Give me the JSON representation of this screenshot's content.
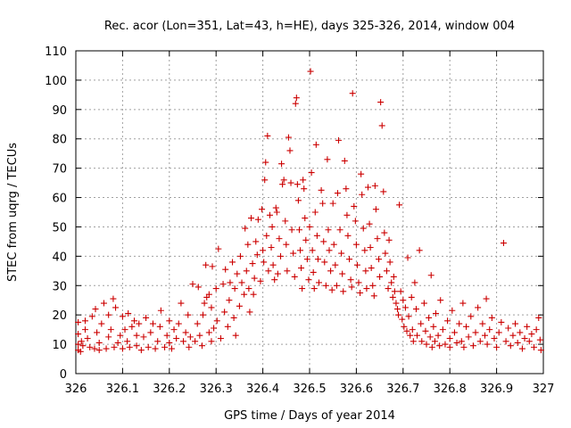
{
  "chart_data": {
    "type": "scatter",
    "title": "Rec. acor (Lon=351, Lat=43, h=HE), days 325-326, 2014, window 004",
    "xlabel": "GPS time / Days of year 2014",
    "ylabel": "STEC from uqrg / TECUs",
    "xlim": [
      326,
      327
    ],
    "ylim": [
      0,
      110
    ],
    "x_ticks": [
      "326",
      "326.1",
      "326.2",
      "326.3",
      "326.4",
      "326.5",
      "326.6",
      "326.7",
      "326.8",
      "326.9",
      "327"
    ],
    "y_ticks": [
      "0",
      "10",
      "20",
      "30",
      "40",
      "50",
      "60",
      "70",
      "80",
      "90",
      "100",
      "110"
    ],
    "grid": true,
    "marker": "plus",
    "color": "#cc0000",
    "points": [
      [
        326.005,
        17.5
      ],
      [
        326.005,
        13.5
      ],
      [
        326.005,
        10
      ],
      [
        326.005,
        8
      ],
      [
        326.01,
        7.5
      ],
      [
        326.012,
        11
      ],
      [
        326.015,
        9.5
      ],
      [
        326.02,
        15
      ],
      [
        326.02,
        18
      ],
      [
        326.025,
        12
      ],
      [
        326.03,
        9
      ],
      [
        326.035,
        19.5
      ],
      [
        326.04,
        8.5
      ],
      [
        326.042,
        22
      ],
      [
        326.045,
        14
      ],
      [
        326.05,
        10.5
      ],
      [
        326.05,
        8
      ],
      [
        326.055,
        17
      ],
      [
        326.06,
        24
      ],
      [
        326.065,
        8.5
      ],
      [
        326.07,
        12.5
      ],
      [
        326.07,
        20
      ],
      [
        326.075,
        15
      ],
      [
        326.08,
        25.5
      ],
      [
        326.082,
        9
      ],
      [
        326.085,
        22.5
      ],
      [
        326.09,
        10.5
      ],
      [
        326.095,
        13
      ],
      [
        326.1,
        19.5
      ],
      [
        326.1,
        8.5
      ],
      [
        326.105,
        15
      ],
      [
        326.11,
        11
      ],
      [
        326.112,
        20.5
      ],
      [
        326.115,
        9
      ],
      [
        326.12,
        16
      ],
      [
        326.125,
        18
      ],
      [
        326.13,
        9.5
      ],
      [
        326.13,
        13
      ],
      [
        326.135,
        17
      ],
      [
        326.14,
        8
      ],
      [
        326.145,
        12.5
      ],
      [
        326.15,
        19
      ],
      [
        326.155,
        9
      ],
      [
        326.16,
        14
      ],
      [
        326.165,
        17
      ],
      [
        326.17,
        8.5
      ],
      [
        326.175,
        11
      ],
      [
        326.18,
        16
      ],
      [
        326.182,
        21.5
      ],
      [
        326.19,
        9
      ],
      [
        326.195,
        13
      ],
      [
        326.2,
        18
      ],
      [
        326.2,
        10.5
      ],
      [
        326.205,
        8.5
      ],
      [
        326.21,
        15
      ],
      [
        326.215,
        12
      ],
      [
        326.22,
        17
      ],
      [
        326.225,
        24
      ],
      [
        326.23,
        11
      ],
      [
        326.235,
        14
      ],
      [
        326.24,
        20
      ],
      [
        326.242,
        9
      ],
      [
        326.245,
        12.5
      ],
      [
        326.25,
        30.5
      ],
      [
        326.255,
        11
      ],
      [
        326.26,
        17
      ],
      [
        326.262,
        29.5
      ],
      [
        326.265,
        13
      ],
      [
        326.27,
        9.5
      ],
      [
        326.272,
        20
      ],
      [
        326.275,
        24
      ],
      [
        326.278,
        37
      ],
      [
        326.28,
        26
      ],
      [
        326.285,
        14
      ],
      [
        326.285,
        27
      ],
      [
        326.29,
        11
      ],
      [
        326.29,
        22.5
      ],
      [
        326.292,
        36.5
      ],
      [
        326.295,
        15.5
      ],
      [
        326.3,
        29
      ],
      [
        326.302,
        18
      ],
      [
        326.305,
        42.5
      ],
      [
        326.31,
        12
      ],
      [
        326.315,
        30.5
      ],
      [
        326.318,
        21
      ],
      [
        326.32,
        35.5
      ],
      [
        326.325,
        16
      ],
      [
        326.328,
        25
      ],
      [
        326.33,
        31
      ],
      [
        326.335,
        38
      ],
      [
        326.338,
        19
      ],
      [
        326.34,
        29
      ],
      [
        326.342,
        13
      ],
      [
        326.345,
        34
      ],
      [
        326.35,
        23
      ],
      [
        326.352,
        40
      ],
      [
        326.355,
        31
      ],
      [
        326.36,
        27
      ],
      [
        326.362,
        49.5
      ],
      [
        326.365,
        35
      ],
      [
        326.368,
        44
      ],
      [
        326.37,
        29
      ],
      [
        326.372,
        21
      ],
      [
        326.375,
        53
      ],
      [
        326.378,
        37.5
      ],
      [
        326.38,
        27
      ],
      [
        326.382,
        32.5
      ],
      [
        326.385,
        45
      ],
      [
        326.388,
        40.5
      ],
      [
        326.39,
        52.5
      ],
      [
        326.395,
        31.5
      ],
      [
        326.398,
        56
      ],
      [
        326.4,
        42
      ],
      [
        326.402,
        38
      ],
      [
        326.404,
        66
      ],
      [
        326.406,
        72
      ],
      [
        326.408,
        47
      ],
      [
        326.41,
        81
      ],
      [
        326.412,
        35
      ],
      [
        326.415,
        54
      ],
      [
        326.418,
        43
      ],
      [
        326.42,
        50
      ],
      [
        326.422,
        37
      ],
      [
        326.425,
        32
      ],
      [
        326.428,
        56.5
      ],
      [
        326.43,
        55
      ],
      [
        326.432,
        34
      ],
      [
        326.435,
        46
      ],
      [
        326.438,
        40
      ],
      [
        326.44,
        71.5
      ],
      [
        326.442,
        64.5
      ],
      [
        326.445,
        66
      ],
      [
        326.448,
        52
      ],
      [
        326.45,
        44
      ],
      [
        326.452,
        35
      ],
      [
        326.455,
        80.5
      ],
      [
        326.458,
        76
      ],
      [
        326.46,
        65
      ],
      [
        326.462,
        49
      ],
      [
        326.465,
        41
      ],
      [
        326.468,
        33
      ],
      [
        326.47,
        92
      ],
      [
        326.472,
        94
      ],
      [
        326.474,
        64.5
      ],
      [
        326.476,
        59
      ],
      [
        326.478,
        49
      ],
      [
        326.48,
        42
      ],
      [
        326.482,
        36
      ],
      [
        326.484,
        29
      ],
      [
        326.486,
        66
      ],
      [
        326.488,
        63
      ],
      [
        326.49,
        53
      ],
      [
        326.492,
        45.5
      ],
      [
        326.495,
        39
      ],
      [
        326.498,
        32
      ],
      [
        326.5,
        50
      ],
      [
        326.502,
        103
      ],
      [
        326.504,
        68.5
      ],
      [
        326.506,
        42
      ],
      [
        326.508,
        34.5
      ],
      [
        326.51,
        29
      ],
      [
        326.512,
        55
      ],
      [
        326.514,
        78
      ],
      [
        326.516,
        47
      ],
      [
        326.518,
        39
      ],
      [
        326.52,
        31
      ],
      [
        326.525,
        62.5
      ],
      [
        326.528,
        58
      ],
      [
        326.53,
        45
      ],
      [
        326.532,
        38
      ],
      [
        326.535,
        30
      ],
      [
        326.538,
        73
      ],
      [
        326.54,
        49
      ],
      [
        326.542,
        42
      ],
      [
        326.545,
        35
      ],
      [
        326.548,
        28.5
      ],
      [
        326.55,
        58
      ],
      [
        326.552,
        44
      ],
      [
        326.555,
        37
      ],
      [
        326.558,
        30
      ],
      [
        326.56,
        61.5
      ],
      [
        326.562,
        79.5
      ],
      [
        326.565,
        49
      ],
      [
        326.568,
        41
      ],
      [
        326.57,
        34
      ],
      [
        326.572,
        28
      ],
      [
        326.575,
        72.5
      ],
      [
        326.578,
        63
      ],
      [
        326.58,
        54
      ],
      [
        326.582,
        47
      ],
      [
        326.585,
        39
      ],
      [
        326.588,
        32
      ],
      [
        326.59,
        29.5
      ],
      [
        326.592,
        95.5
      ],
      [
        326.595,
        57
      ],
      [
        326.598,
        52
      ],
      [
        326.6,
        44
      ],
      [
        326.602,
        37
      ],
      [
        326.605,
        31
      ],
      [
        326.608,
        27.5
      ],
      [
        326.61,
        68
      ],
      [
        326.612,
        61
      ],
      [
        326.615,
        49.5
      ],
      [
        326.618,
        42
      ],
      [
        326.62,
        35
      ],
      [
        326.622,
        29
      ],
      [
        326.625,
        63.5
      ],
      [
        326.628,
        51
      ],
      [
        326.63,
        43
      ],
      [
        326.632,
        36
      ],
      [
        326.635,
        30
      ],
      [
        326.638,
        26.5
      ],
      [
        326.64,
        64
      ],
      [
        326.642,
        56
      ],
      [
        326.645,
        46
      ],
      [
        326.648,
        39
      ],
      [
        326.65,
        33
      ],
      [
        326.652,
        92.5
      ],
      [
        326.655,
        84.5
      ],
      [
        326.658,
        62
      ],
      [
        326.66,
        48
      ],
      [
        326.662,
        41
      ],
      [
        326.665,
        35
      ],
      [
        326.668,
        29
      ],
      [
        326.67,
        45.5
      ],
      [
        326.672,
        38
      ],
      [
        326.675,
        31
      ],
      [
        326.678,
        26
      ],
      [
        326.68,
        33
      ],
      [
        326.682,
        28
      ],
      [
        326.685,
        24
      ],
      [
        326.688,
        22
      ],
      [
        326.69,
        20
      ],
      [
        326.692,
        57.5
      ],
      [
        326.695,
        28
      ],
      [
        326.698,
        18.5
      ],
      [
        326.7,
        25
      ],
      [
        326.702,
        16
      ],
      [
        326.705,
        22.5
      ],
      [
        326.708,
        14.5
      ],
      [
        326.71,
        39.5
      ],
      [
        326.712,
        19.5
      ],
      [
        326.715,
        13
      ],
      [
        326.718,
        26
      ],
      [
        326.72,
        15
      ],
      [
        326.722,
        11
      ],
      [
        326.725,
        31
      ],
      [
        326.728,
        22
      ],
      [
        326.73,
        13
      ],
      [
        326.735,
        42
      ],
      [
        326.738,
        17
      ],
      [
        326.74,
        11
      ],
      [
        326.745,
        24
      ],
      [
        326.748,
        14.5
      ],
      [
        326.75,
        10
      ],
      [
        326.755,
        19
      ],
      [
        326.758,
        12.5
      ],
      [
        326.76,
        33.5
      ],
      [
        326.762,
        9
      ],
      [
        326.765,
        16
      ],
      [
        326.768,
        11
      ],
      [
        326.77,
        20.5
      ],
      [
        326.775,
        13
      ],
      [
        326.778,
        9.5
      ],
      [
        326.78,
        25
      ],
      [
        326.785,
        15
      ],
      [
        326.79,
        10
      ],
      [
        326.795,
        18
      ],
      [
        326.8,
        12
      ],
      [
        326.8,
        9
      ],
      [
        326.805,
        21.5
      ],
      [
        326.81,
        14
      ],
      [
        326.815,
        10.5
      ],
      [
        326.82,
        17
      ],
      [
        326.825,
        11
      ],
      [
        326.828,
        24
      ],
      [
        326.83,
        9
      ],
      [
        326.835,
        16
      ],
      [
        326.84,
        12.5
      ],
      [
        326.845,
        19.5
      ],
      [
        326.85,
        9.5
      ],
      [
        326.855,
        14
      ],
      [
        326.86,
        22.5
      ],
      [
        326.865,
        11
      ],
      [
        326.87,
        17
      ],
      [
        326.875,
        13
      ],
      [
        326.878,
        25.5
      ],
      [
        326.88,
        10
      ],
      [
        326.885,
        15
      ],
      [
        326.89,
        19
      ],
      [
        326.895,
        12
      ],
      [
        326.9,
        9
      ],
      [
        326.905,
        14
      ],
      [
        326.91,
        17.5
      ],
      [
        326.915,
        44.5
      ],
      [
        326.92,
        11
      ],
      [
        326.925,
        15.5
      ],
      [
        326.93,
        9.5
      ],
      [
        326.935,
        13
      ],
      [
        326.94,
        17
      ],
      [
        326.945,
        10.5
      ],
      [
        326.95,
        14
      ],
      [
        326.955,
        8.5
      ],
      [
        326.96,
        12
      ],
      [
        326.965,
        16
      ],
      [
        326.97,
        11
      ],
      [
        326.975,
        13.5
      ],
      [
        326.98,
        9
      ],
      [
        326.985,
        15
      ],
      [
        326.99,
        19
      ],
      [
        326.993,
        11.5
      ],
      [
        326.995,
        8
      ]
    ]
  }
}
